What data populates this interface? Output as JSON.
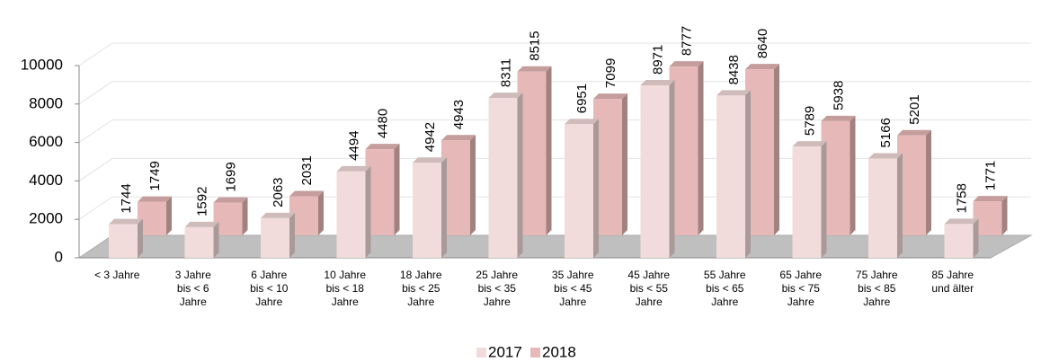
{
  "chart_data": {
    "type": "bar3d",
    "categories": [
      "< 3 Jahre",
      "3 Jahre\nbis < 6\nJahre",
      "6 Jahre\nbis < 10\nJahre",
      "10 Jahre\nbis < 18\nJahre",
      "18 Jahre\nbis < 25\nJahre",
      "25 Jahre\nbis < 35\nJahre",
      "35 Jahre\nbis < 45\nJahre",
      "45 Jahre\nbis < 55\nJahre",
      "55 Jahre\nbis < 65\nJahre",
      "65 Jahre\nbis < 75\nJahre",
      "75 Jahre\nbis < 85\nJahre",
      "85 Jahre\nund älter"
    ],
    "series": [
      {
        "name": "2017",
        "color": "#f2dcdb",
        "values": [
          1744,
          1592,
          2063,
          4494,
          4942,
          8311,
          6951,
          8971,
          8438,
          5789,
          5166,
          1758
        ]
      },
      {
        "name": "2018",
        "color": "#e6b9b8",
        "values": [
          1749,
          1699,
          2031,
          4480,
          4943,
          8515,
          7099,
          8777,
          8640,
          5938,
          5201,
          1771
        ]
      }
    ],
    "ylim": [
      0,
      10000
    ],
    "yticks": [
      0,
      2000,
      4000,
      6000,
      8000,
      10000
    ],
    "grid": true,
    "legend": "bottom"
  }
}
